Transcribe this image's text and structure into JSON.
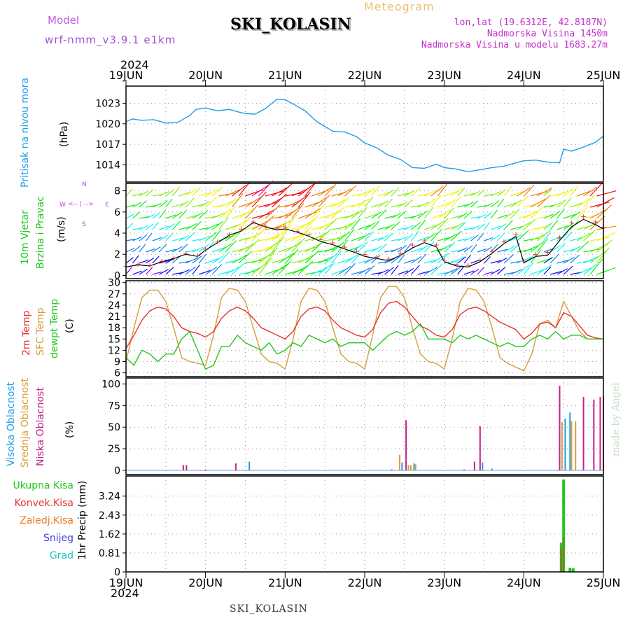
{
  "header": {
    "model_label": "Model",
    "model_value": "wrf-nmm_v3.9.1  e1km",
    "station": "SKI_KOLASIN",
    "product": "Meteogram",
    "lonlat": "lon,lat (19.6312E, 42.8187N)",
    "elevation": "Nadmorska Visina 1450m",
    "model_elevation": "Nadmorska Visina u modelu 1683.27m",
    "year_top": "2024",
    "year_bottom": "2024",
    "footer_station": "SKI_KOLASIN",
    "credit": "made by Angel"
  },
  "colors": {
    "pressure": "#1e9ee8",
    "temp": "#e8322e",
    "sfc_temp": "#d89c3a",
    "dewpt": "#22c81e",
    "high_cloud": "#1e9ee8",
    "mid_cloud": "#d89c3a",
    "low_cloud": "#c81e8c",
    "total_precip": "#22c81e",
    "conv_precip": "#e8322e",
    "frozen_precip": "#e87a1e",
    "snow": "#4040e0",
    "hail": "#20c0c0"
  },
  "panel_labels": {
    "pressure": [
      "Pritisak na nivou mora",
      "(hPa)"
    ],
    "wind": [
      "10m Vjetar",
      "Brzina i Pravac",
      "(m/s)"
    ],
    "compass": [
      "N",
      "W",
      "E",
      "S",
      "<-- | -->"
    ],
    "temp": [
      "2m Temp",
      "SFC Temp",
      "dewpt Temp",
      "(C)"
    ],
    "cloud": [
      "Visoka Oblacnost",
      "Srednja Oblacnost",
      "Niska Oblacnost",
      "(%)"
    ],
    "precip_legend": [
      "Ukupna Kisa",
      "Konvek.Kisa",
      "Zaledj.Kisa",
      "Snijeg",
      "Grad"
    ],
    "precip_unit": "1hr Precip (mm)"
  },
  "chart_data": [
    {
      "type": "line",
      "panel": "pressure",
      "title": "Pritisak na nivou mora",
      "ylabel": "(hPa)",
      "categories": [
        "19JUN",
        "20JUN",
        "21JUN",
        "22JUN",
        "23JUN",
        "24JUN",
        "25JUN"
      ],
      "ylim": [
        1011.5,
        1025.5
      ],
      "yticks": [
        1014,
        1017,
        1020,
        1023
      ],
      "x": [
        0,
        0.08,
        0.2,
        0.35,
        0.5,
        0.65,
        0.8,
        0.88,
        1.0,
        1.15,
        1.3,
        1.42,
        1.5,
        1.62,
        1.75,
        1.9,
        2.0,
        2.1,
        2.25,
        2.4,
        2.6,
        2.75,
        2.9,
        3.0,
        3.15,
        3.3,
        3.45,
        3.6,
        3.75,
        3.9,
        4.0,
        4.15,
        4.3,
        4.45,
        4.6,
        4.75,
        4.9,
        5.0,
        5.15,
        5.3,
        5.45,
        5.5,
        5.6,
        5.75,
        5.9,
        6.0
      ],
      "series": [
        {
          "name": "SLP",
          "values": [
            1020.3,
            1020.7,
            1020.5,
            1020.6,
            1020.1,
            1020.2,
            1021.2,
            1022.1,
            1022.3,
            1021.9,
            1022.1,
            1021.7,
            1021.5,
            1021.4,
            1022.2,
            1023.6,
            1023.5,
            1022.9,
            1021.9,
            1020.3,
            1018.9,
            1018.8,
            1018.1,
            1017.2,
            1016.5,
            1015.4,
            1014.8,
            1013.6,
            1013.5,
            1014.1,
            1013.6,
            1013.4,
            1013.0,
            1013.3,
            1013.6,
            1013.8,
            1014.3,
            1014.6,
            1014.7,
            1014.4,
            1014.3,
            1016.3,
            1016.0,
            1016.6,
            1017.3,
            1018.2
          ]
        }
      ]
    },
    {
      "type": "scatter",
      "panel": "wind",
      "title": "10m Vjetar Brzina i Pravac",
      "ylabel": "(m/s)",
      "ylim": [
        -0.3,
        8.7
      ],
      "yticks": [
        0,
        2,
        4,
        6,
        8
      ],
      "x": [
        0,
        0.15,
        0.3,
        0.45,
        0.6,
        0.75,
        0.9,
        1.0,
        1.15,
        1.3,
        1.45,
        1.6,
        1.75,
        1.9,
        2.0,
        2.15,
        2.3,
        2.45,
        2.6,
        2.75,
        2.9,
        3.0,
        3.15,
        3.3,
        3.45,
        3.6,
        3.75,
        3.9,
        4.0,
        4.15,
        4.3,
        4.45,
        4.6,
        4.75,
        4.9,
        5.0,
        5.15,
        5.3,
        5.45,
        5.6,
        5.75,
        5.9,
        6.0
      ],
      "series": [
        {
          "name": "speed",
          "values": [
            0.8,
            1.0,
            0.9,
            1.3,
            1.6,
            2.0,
            1.8,
            2.4,
            3.1,
            3.8,
            4.2,
            5.0,
            4.6,
            4.3,
            4.4,
            4.1,
            3.7,
            3.2,
            2.9,
            2.5,
            2.1,
            1.8,
            1.6,
            1.4,
            1.9,
            2.6,
            3.1,
            2.7,
            1.3,
            0.9,
            0.8,
            1.3,
            2.1,
            3.0,
            3.7,
            1.2,
            1.8,
            1.9,
            3.3,
            4.6,
            5.3,
            4.8,
            4.4
          ]
        },
        {
          "name": "gust",
          "values": [
            0.9,
            1.1,
            1.0,
            1.4,
            1.7,
            2.1,
            1.9,
            2.5,
            3.2,
            3.9,
            4.4,
            5.1,
            4.7,
            4.5,
            4.6,
            4.2,
            3.9,
            3.4,
            3.1,
            2.7,
            2.3,
            2.0,
            1.8,
            1.6,
            2.1,
            2.9,
            3.3,
            2.9,
            1.5,
            1.1,
            1.0,
            1.5,
            2.3,
            3.2,
            3.9,
            1.4,
            2.0,
            2.2,
            3.6,
            5.0,
            5.6,
            5.1,
            4.6
          ]
        }
      ]
    },
    {
      "type": "line",
      "panel": "temperature",
      "ylabel": "(C)",
      "ylim": [
        5,
        30.5
      ],
      "yticks": [
        6,
        9,
        12,
        15,
        18,
        21,
        24,
        27,
        30
      ],
      "x": [
        0,
        0.1,
        0.2,
        0.3,
        0.4,
        0.5,
        0.6,
        0.7,
        0.8,
        0.9,
        1.0,
        1.1,
        1.2,
        1.3,
        1.4,
        1.5,
        1.6,
        1.7,
        1.8,
        1.9,
        2.0,
        2.1,
        2.2,
        2.3,
        2.4,
        2.5,
        2.6,
        2.7,
        2.8,
        2.9,
        3.0,
        3.1,
        3.2,
        3.3,
        3.4,
        3.5,
        3.6,
        3.7,
        3.8,
        3.9,
        4.0,
        4.1,
        4.2,
        4.3,
        4.4,
        4.5,
        4.6,
        4.7,
        4.8,
        4.9,
        5.0,
        5.1,
        5.2,
        5.3,
        5.4,
        5.5,
        5.6,
        5.7,
        5.8,
        5.9,
        6.0
      ],
      "series": [
        {
          "name": "2m Temp",
          "values": [
            12.5,
            16,
            20,
            22.5,
            23.5,
            23,
            21,
            18,
            17,
            16.5,
            15.5,
            17,
            20.5,
            22.5,
            23.5,
            22.5,
            20.5,
            18,
            17,
            16,
            15,
            17,
            21,
            23,
            23.5,
            22.5,
            20,
            18,
            17,
            16,
            15.5,
            17.5,
            22,
            24.5,
            25,
            23.5,
            21,
            18.5,
            17.5,
            16,
            15.5,
            17.5,
            21.5,
            23,
            23.5,
            22.5,
            21,
            19.5,
            18.5,
            17.5,
            15,
            16.5,
            19,
            19.5,
            18,
            22,
            21,
            18.5,
            16,
            15.3,
            15
          ]
        },
        {
          "name": "SFC Temp",
          "values": [
            9,
            18,
            26,
            28,
            28,
            25,
            18,
            10,
            9,
            8.5,
            8,
            16,
            26,
            28.5,
            28,
            25,
            18,
            11,
            9,
            8.5,
            7,
            15,
            25,
            28.5,
            28,
            25,
            18,
            11,
            9,
            8.5,
            7,
            16,
            26,
            29,
            29,
            26,
            18,
            11,
            9,
            8.5,
            7,
            15,
            25,
            28.5,
            28,
            25,
            18,
            10,
            8.5,
            7.5,
            6.5,
            11,
            19,
            20,
            18,
            25,
            21,
            17,
            15,
            15,
            15
          ]
        },
        {
          "name": "dewpt Temp",
          "values": [
            10,
            8,
            12,
            11,
            9,
            11,
            11,
            15,
            17,
            12,
            7,
            8,
            13,
            13,
            16,
            14,
            13,
            12,
            14,
            11,
            12,
            14,
            13,
            16,
            15,
            14,
            15,
            13,
            14,
            14,
            14,
            12,
            14,
            16,
            17,
            16,
            17,
            19,
            15,
            15,
            15,
            14,
            16,
            15,
            16,
            15,
            14,
            13,
            14,
            13,
            13,
            15,
            16,
            15,
            17,
            15,
            16,
            16,
            15,
            15,
            15
          ]
        }
      ]
    },
    {
      "type": "bar",
      "panel": "cloud",
      "ylabel": "(%)",
      "ylim": [
        -5,
        107
      ],
      "yticks": [
        0,
        25,
        50,
        75,
        100
      ],
      "series": [
        {
          "name": "Niska Oblacnost",
          "x": [
            0.72,
            0.76,
            1.0,
            1.38,
            3.34,
            3.52,
            4.25,
            4.38,
            4.45,
            5.45,
            5.75,
            5.88,
            5.96,
            6.0
          ],
          "values": [
            6,
            6,
            1,
            8,
            1,
            58,
            1,
            10,
            51,
            98,
            85,
            82,
            85,
            86
          ]
        },
        {
          "name": "Srednja Oblacnost",
          "x": [
            3.44,
            3.55,
            3.58,
            3.64,
            5.48,
            5.6,
            5.65
          ],
          "values": [
            18,
            6,
            6,
            7,
            56,
            57,
            57
          ]
        },
        {
          "name": "Visoka Oblacnost",
          "x": [
            1.55,
            3.47,
            3.62,
            4.48,
            4.6,
            5.52,
            5.58
          ],
          "values": [
            10,
            9,
            8,
            9,
            2,
            60,
            67
          ]
        }
      ]
    },
    {
      "type": "bar",
      "panel": "precip",
      "ylabel": "1hr Precip (mm)",
      "ylim": [
        0,
        4.1
      ],
      "yticks": [
        0,
        0.81,
        1.62,
        2.43,
        3.24
      ],
      "series": [
        {
          "name": "Ukupna Kisa",
          "x": [
            5.47,
            5.5,
            5.58,
            5.62
          ],
          "values": [
            1.25,
            3.95,
            0.18,
            0.15
          ]
        },
        {
          "name": "Konvek.Kisa",
          "x": [
            5.47,
            5.5
          ],
          "values": [
            1.0,
            1.5
          ]
        }
      ]
    }
  ]
}
